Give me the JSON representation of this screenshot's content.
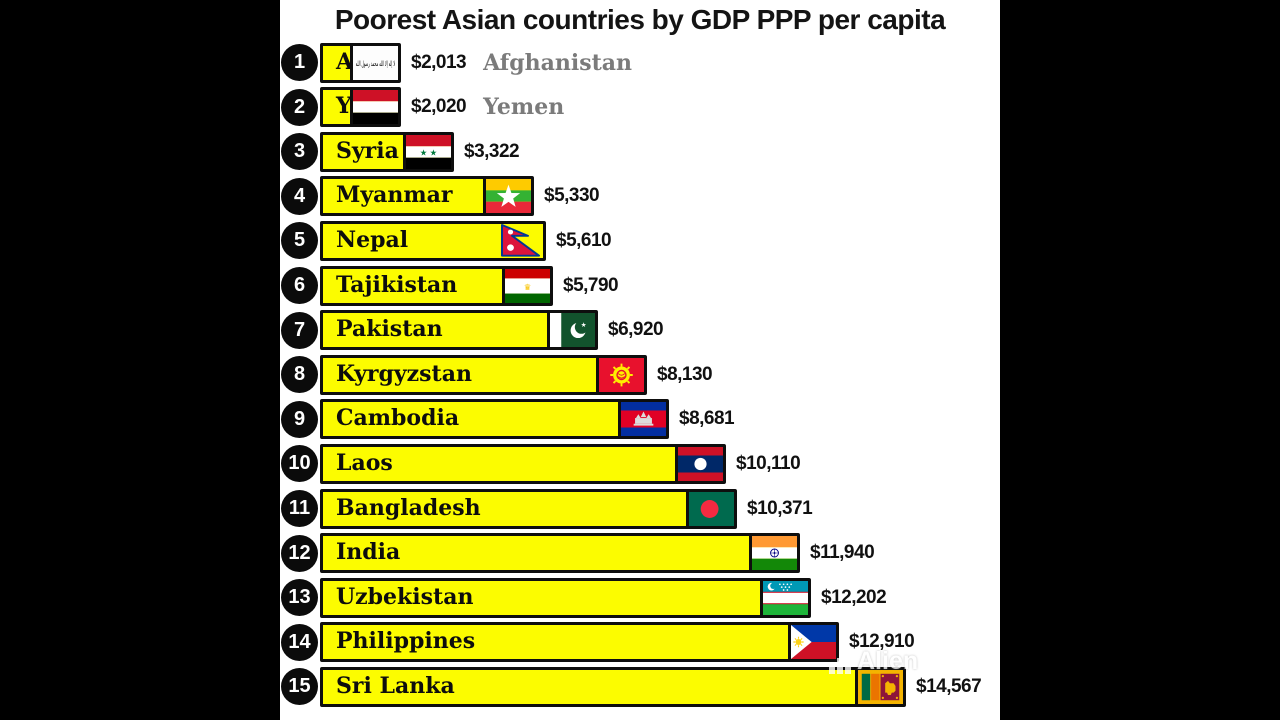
{
  "title": "Poorest Asian countries by GDP PPP per capita",
  "watermark": {
    "label": "Alien",
    "icon": "bar-chart-icon"
  },
  "colors": {
    "background": "#ffffff",
    "pillarbox": "#000000",
    "bar_fill": "#FCFC00",
    "bar_border": "#0e0e0e",
    "rank_circle": "#0b0b0b",
    "rank_text": "#ffffff",
    "value_text": "#111111",
    "muted_name_text": "#7b7b7b",
    "title_text": "#141414"
  },
  "chart_data": {
    "type": "bar",
    "orientation": "horizontal",
    "title": "Poorest Asian countries by GDP PPP per capita",
    "unit": "GDP PPP per capita (USD)",
    "value_range": [
      0,
      14567
    ],
    "grid": false,
    "legend": false,
    "categories": [
      "Afghanistan",
      "Yemen",
      "Syria",
      "Myanmar",
      "Nepal",
      "Tajikistan",
      "Pakistan",
      "Kyrgyzstan",
      "Cambodia",
      "Laos",
      "Bangladesh",
      "India",
      "Uzbekistan",
      "Philippines",
      "Sri Lanka"
    ],
    "values": [
      2013,
      2020,
      3322,
      5330,
      5610,
      5790,
      6920,
      8130,
      8681,
      10110,
      10371,
      11940,
      12202,
      12910,
      14567
    ],
    "value_labels": [
      "$2,013",
      "$2,020",
      "$3,322",
      "$5,330",
      "$5,610",
      "$5,790",
      "$6,920",
      "$8,130",
      "$8,681",
      "$10,110",
      "$10,371",
      "$11,940",
      "$12,202",
      "$12,910",
      "$14,567"
    ],
    "ranks": [
      1,
      2,
      3,
      4,
      5,
      6,
      7,
      8,
      9,
      10,
      11,
      12,
      13,
      14,
      15
    ],
    "flags": [
      "afghanistan-flag-icon",
      "yemen-flag-icon",
      "syria-flag-icon",
      "myanmar-flag-icon",
      "nepal-flag-icon",
      "tajikistan-flag-icon",
      "pakistan-flag-icon",
      "kyrgyzstan-flag-icon",
      "cambodia-flag-icon",
      "laos-flag-icon",
      "bangladesh-flag-icon",
      "india-flag-icon",
      "uzbekistan-flag-icon",
      "philippines-flag-icon",
      "srilanka-flag-icon"
    ],
    "name_outside_rows": [
      0,
      1
    ]
  }
}
